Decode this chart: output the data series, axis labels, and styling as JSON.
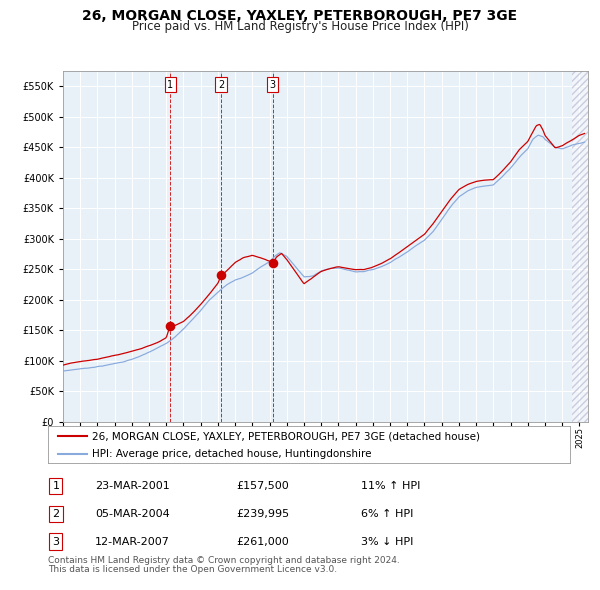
{
  "title": "26, MORGAN CLOSE, YAXLEY, PETERBOROUGH, PE7 3GE",
  "subtitle": "Price paid vs. HM Land Registry's House Price Index (HPI)",
  "legend_line1": "26, MORGAN CLOSE, YAXLEY, PETERBOROUGH, PE7 3GE (detached house)",
  "legend_line2": "HPI: Average price, detached house, Huntingdonshire",
  "footer_line1": "Contains HM Land Registry data © Crown copyright and database right 2024.",
  "footer_line2": "This data is licensed under the Open Government Licence v3.0.",
  "transactions": [
    {
      "num": 1,
      "date": "23-MAR-2001",
      "price": 157500,
      "pct": "11%",
      "dir": "↑"
    },
    {
      "num": 2,
      "date": "05-MAR-2004",
      "price": 239995,
      "pct": "6%",
      "dir": "↑"
    },
    {
      "num": 3,
      "date": "12-MAR-2007",
      "price": 261000,
      "pct": "3%",
      "dir": "↓"
    }
  ],
  "sale_dates_decimal": [
    2001.22,
    2004.18,
    2007.19
  ],
  "sale_prices": [
    157500,
    239995,
    261000
  ],
  "ylim": [
    0,
    575000
  ],
  "xlim_start": 1995.0,
  "xlim_end": 2025.5,
  "red_color": "#cc0000",
  "blue_color": "#88aadd",
  "bg_color": "#ffffff",
  "plot_bg": "#e8f0f8",
  "grid_color": "#ffffff",
  "title_fontsize": 10,
  "subtitle_fontsize": 8.5,
  "legend_fontsize": 7.5,
  "footer_fontsize": 6.5,
  "ytick_labels": [
    "£0",
    "£50K",
    "£100K",
    "£150K",
    "£200K",
    "£250K",
    "£300K",
    "£350K",
    "£400K",
    "£450K",
    "£500K",
    "£550K"
  ],
  "ytick_values": [
    0,
    50000,
    100000,
    150000,
    200000,
    250000,
    300000,
    350000,
    400000,
    450000,
    500000,
    550000
  ]
}
